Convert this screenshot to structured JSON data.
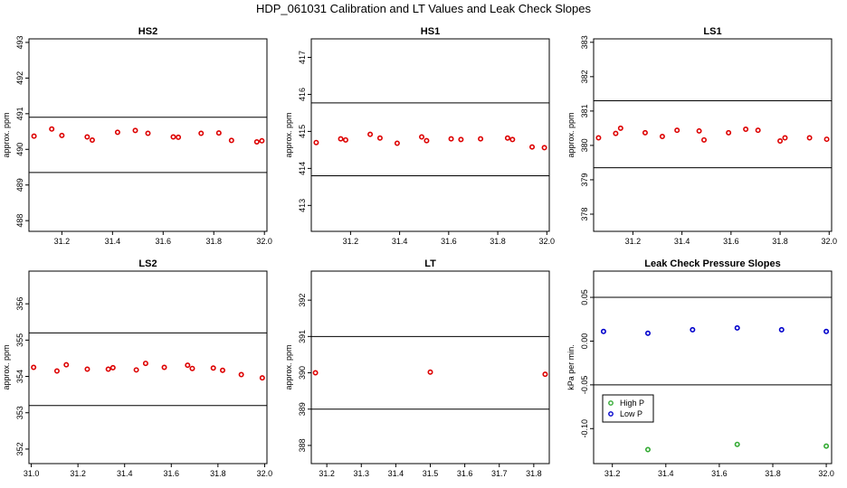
{
  "title": "HDP_061031  Calibration and LT Values and Leak Check Slopes",
  "chart_data": [
    {
      "type": "scatter",
      "title": "HS2",
      "ylabel": "approx. ppm",
      "xlim": [
        31.07,
        32.01
      ],
      "ylim": [
        487.7,
        493.1
      ],
      "xticks": [
        "31.2",
        "31.4",
        "31.6",
        "31.8",
        "32.0"
      ],
      "yticks": [
        "488",
        "489",
        "490",
        "491",
        "492",
        "493"
      ],
      "hlines": [
        490.9,
        489.35
      ],
      "point_color": "#dd0000",
      "series": [
        {
          "x": [
            31.09,
            31.16,
            31.2,
            31.3,
            31.32,
            31.42,
            31.49,
            31.54,
            31.64,
            31.66,
            31.75,
            31.82,
            31.87,
            31.97,
            31.99
          ],
          "y": [
            490.37,
            490.57,
            490.39,
            490.35,
            490.26,
            490.48,
            490.53,
            490.45,
            490.35,
            490.34,
            490.45,
            490.46,
            490.25,
            490.21,
            490.24
          ]
        }
      ]
    },
    {
      "type": "scatter",
      "title": "HS1",
      "ylabel": "approx. ppm",
      "xlim": [
        31.04,
        32.01
      ],
      "ylim": [
        412.3,
        417.5
      ],
      "xticks": [
        "31.2",
        "31.4",
        "31.6",
        "31.8",
        "32.0"
      ],
      "yticks": [
        "413",
        "414",
        "415",
        "416",
        "417"
      ],
      "hlines": [
        415.77,
        413.8
      ],
      "point_color": "#dd0000",
      "series": [
        {
          "x": [
            31.06,
            31.16,
            31.18,
            31.28,
            31.32,
            31.39,
            31.49,
            31.51,
            31.61,
            31.65,
            31.73,
            31.84,
            31.86,
            31.94,
            31.99
          ],
          "y": [
            414.7,
            414.8,
            414.77,
            414.92,
            414.82,
            414.68,
            414.85,
            414.75,
            414.8,
            414.78,
            414.8,
            414.82,
            414.78,
            414.58,
            414.56
          ]
        }
      ]
    },
    {
      "type": "scatter",
      "title": "LS1",
      "ylabel": "approx. ppm",
      "xlim": [
        31.04,
        32.01
      ],
      "ylim": [
        377.5,
        383.1
      ],
      "xticks": [
        "31.2",
        "31.4",
        "31.6",
        "31.8",
        "32.0"
      ],
      "yticks": [
        "378",
        "379",
        "380",
        "381",
        "382",
        "383"
      ],
      "hlines": [
        381.3,
        379.35
      ],
      "point_color": "#dd0000",
      "series": [
        {
          "x": [
            31.06,
            31.13,
            31.15,
            31.25,
            31.32,
            31.38,
            31.47,
            31.49,
            31.59,
            31.66,
            31.71,
            31.8,
            31.82,
            31.92,
            31.99
          ],
          "y": [
            380.22,
            380.35,
            380.5,
            380.37,
            380.26,
            380.44,
            380.42,
            380.16,
            380.37,
            380.47,
            380.44,
            380.13,
            380.22,
            380.22,
            380.18
          ]
        }
      ]
    },
    {
      "type": "scatter",
      "title": "LS2",
      "ylabel": "approx. ppm",
      "xlim": [
        30.99,
        32.01
      ],
      "ylim": [
        351.6,
        356.9
      ],
      "xticks": [
        "31.0",
        "31.2",
        "31.4",
        "31.6",
        "31.8",
        "32.0"
      ],
      "yticks": [
        "352",
        "353",
        "354",
        "355",
        "356"
      ],
      "hlines": [
        355.2,
        353.2
      ],
      "point_color": "#dd0000",
      "series": [
        {
          "x": [
            31.01,
            31.11,
            31.15,
            31.24,
            31.33,
            31.35,
            31.45,
            31.49,
            31.57,
            31.67,
            31.69,
            31.78,
            31.82,
            31.9,
            31.99
          ],
          "y": [
            354.25,
            354.15,
            354.32,
            354.2,
            354.2,
            354.24,
            354.18,
            354.36,
            354.25,
            354.31,
            354.22,
            354.23,
            354.17,
            354.05,
            353.96
          ]
        }
      ]
    },
    {
      "type": "scatter",
      "title": "LT",
      "ylabel": "approx. ppm",
      "xlim": [
        31.155,
        31.845
      ],
      "ylim": [
        387.5,
        392.8
      ],
      "xticks": [
        "31.2",
        "31.3",
        "31.4",
        "31.5",
        "31.6",
        "31.7",
        "31.8"
      ],
      "yticks": [
        "388",
        "389",
        "390",
        "391",
        "392"
      ],
      "hlines": [
        391.0,
        389.0
      ],
      "point_color": "#dd0000",
      "series": [
        {
          "x": [
            31.167,
            31.5,
            31.833
          ],
          "y": [
            390.0,
            390.02,
            389.96
          ]
        }
      ]
    },
    {
      "type": "scatter",
      "title": "Leak Check Pressure Slopes",
      "ylabel": "kPa per min.",
      "xlim": [
        31.13,
        32.02
      ],
      "ylim": [
        -0.14,
        0.08
      ],
      "xticks": [
        "31.2",
        "31.4",
        "31.6",
        "31.8",
        "32.0"
      ],
      "yticks": [
        "-0.10",
        "-0.05",
        "0.00",
        "0.05"
      ],
      "hlines": [
        0.05,
        -0.05
      ],
      "legend": {
        "position": "bottom-left",
        "entries": [
          "High P",
          "Low P"
        ]
      },
      "series": [
        {
          "name": "High P",
          "color": "#33aa33",
          "x": [
            31.333,
            31.667,
            32.0
          ],
          "y": [
            -0.124,
            -0.118,
            -0.12
          ]
        },
        {
          "name": "Low P",
          "color": "#0000cc",
          "x": [
            31.167,
            31.333,
            31.5,
            31.667,
            31.833,
            32.0
          ],
          "y": [
            0.011,
            0.009,
            0.013,
            0.015,
            0.013,
            0.011
          ]
        }
      ]
    }
  ]
}
